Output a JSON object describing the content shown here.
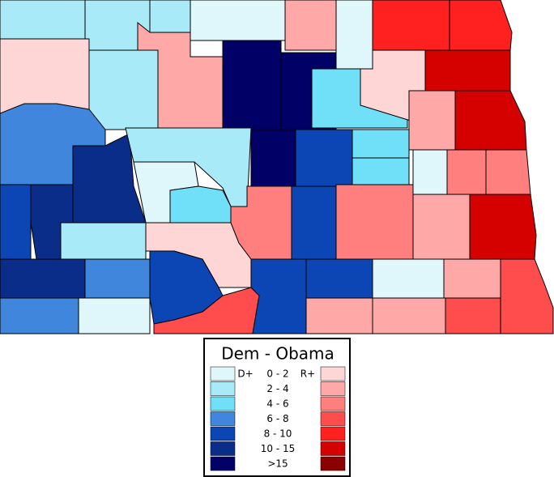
{
  "legend": {
    "title": "Dem - Obama",
    "left_header": "D+",
    "right_header": "R+",
    "rows": [
      {
        "label": "0 - 2",
        "dem_color": "#dff7fb",
        "rep_color": "#ffd6d6"
      },
      {
        "label": "2 - 4",
        "dem_color": "#a8eaf7",
        "rep_color": "#ffa8a8"
      },
      {
        "label": "4 - 6",
        "dem_color": "#6fe0f7",
        "rep_color": "#ff7f7f"
      },
      {
        "label": "6 - 8",
        "dem_color": "#3f86dc",
        "rep_color": "#ff4d4d"
      },
      {
        "label": "8 - 10",
        "dem_color": "#0b46b4",
        "rep_color": "#ff2020"
      },
      {
        "label": "10 - 15",
        "dem_color": "#0a2d8a",
        "rep_color": "#d50000"
      },
      {
        "label": ">15",
        "dem_color": "#000066",
        "rep_color": "#8b0000"
      }
    ]
  }
}
